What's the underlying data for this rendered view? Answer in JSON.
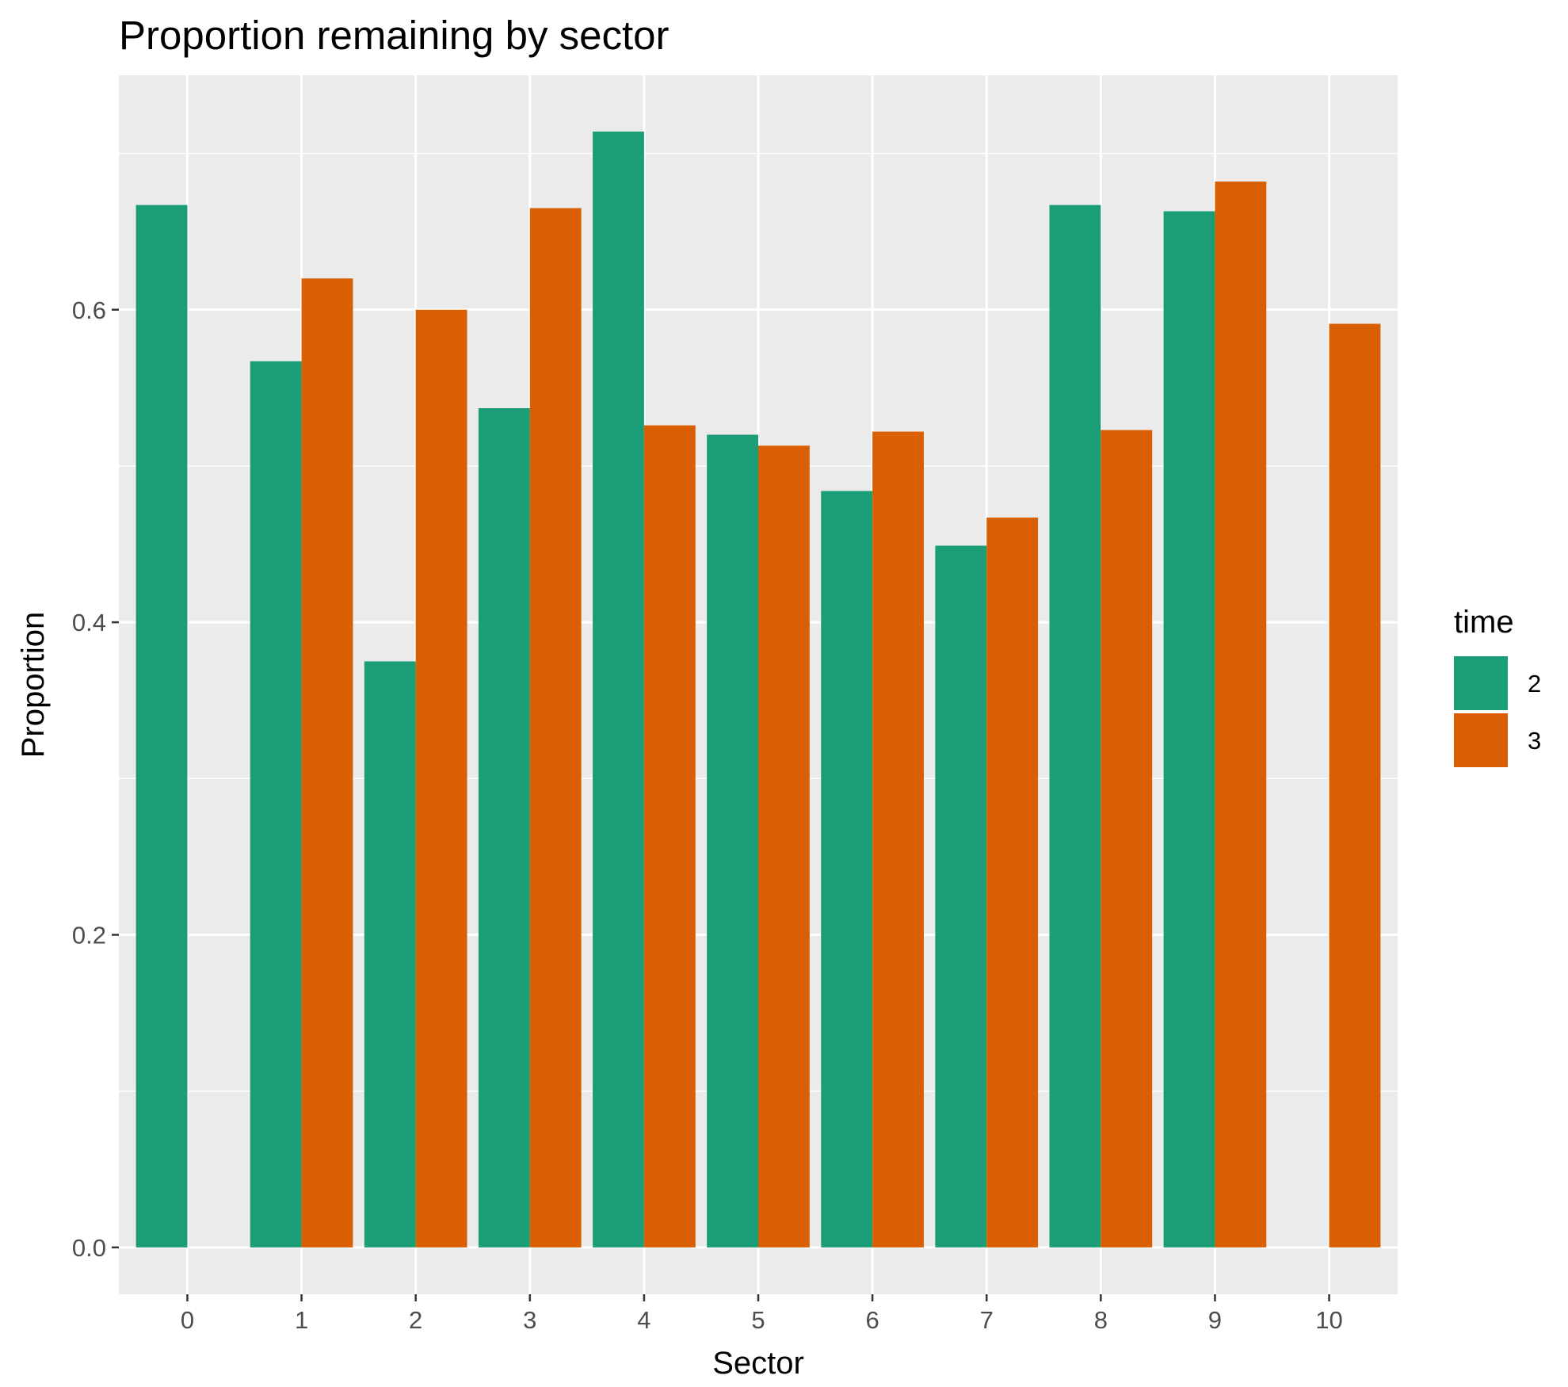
{
  "chart_data": {
    "type": "bar",
    "title": "Proportion remaining by sector",
    "xlabel": "Sector",
    "ylabel": "Proportion",
    "categories": [
      "0",
      "1",
      "2",
      "3",
      "4",
      "5",
      "6",
      "7",
      "8",
      "9",
      "10"
    ],
    "series": [
      {
        "name": "2",
        "color": "#1B9E77",
        "values": [
          0.667,
          0.567,
          0.375,
          0.537,
          0.714,
          0.52,
          0.484,
          0.449,
          0.667,
          0.663,
          null
        ]
      },
      {
        "name": "3",
        "color": "#D95F02",
        "values": [
          null,
          0.62,
          0.6,
          0.665,
          0.526,
          0.513,
          0.522,
          0.467,
          0.523,
          0.682,
          0.591
        ]
      }
    ],
    "ylim": [
      -0.03,
      0.75
    ],
    "yticks": [
      "0.0",
      "0.2",
      "0.4",
      "0.6"
    ],
    "legend_title": "time",
    "legend_position": "right",
    "grid": true,
    "panel_background": "#EBEBEB"
  }
}
